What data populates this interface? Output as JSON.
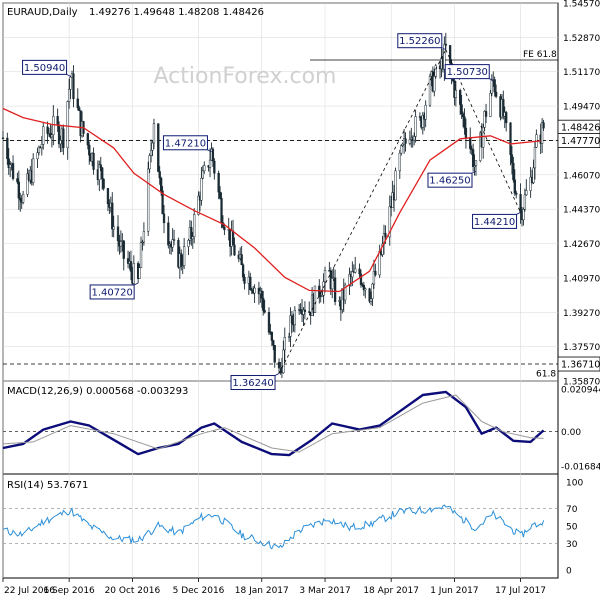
{
  "header": {
    "symbol": "EURAUD,Daily",
    "ohlc": "1.49276 1.49648 1.48208 1.48426"
  },
  "watermark": "ActionForex.com",
  "colors": {
    "candle": "#1a2a33",
    "ma": "#e02020",
    "macd_line": "#0d0d7a",
    "signal_line": "#9a9a9a",
    "rsi_line": "#2a8fd8",
    "grid": "#d7d7d7",
    "axis": "#000000",
    "label_box": "#0d1a70",
    "current_price_box": "#000000"
  },
  "chart_data": [
    {
      "type": "candlestick",
      "panel": "price",
      "y_ticks": [
        "1.54570",
        "1.52870",
        "1.51170",
        "1.49470",
        "1.47770",
        "1.46070",
        "1.44370",
        "1.42670",
        "1.40970",
        "1.39270",
        "1.37570",
        "1.35870"
      ],
      "ylim": [
        1.3587,
        1.5457
      ],
      "current_price": "1.48426",
      "reference_level": "1.47770",
      "support_level": "1.36710",
      "fe_labels": {
        "top": "FE 61.8",
        "bottom": "61.8"
      },
      "pivot_labels": [
        {
          "text": "1.50940",
          "date": "2016-09-07",
          "price": 1.5094,
          "side": "above"
        },
        {
          "text": "1.40720",
          "date": "2016-10-24",
          "price": 1.4072,
          "side": "below"
        },
        {
          "text": "1.47210",
          "date": "2016-12-14",
          "price": 1.4721,
          "side": "above"
        },
        {
          "text": "1.36240",
          "date": "2017-01-30",
          "price": 1.3624,
          "side": "below"
        },
        {
          "text": "1.52260",
          "date": "2017-05-26",
          "price": 1.5226,
          "side": "above"
        },
        {
          "text": "1.46250",
          "date": "2017-06-16",
          "price": 1.4625,
          "side": "below"
        },
        {
          "text": "1.50730",
          "date": "2017-06-28",
          "price": 1.5073,
          "side": "above"
        },
        {
          "text": "1.44210",
          "date": "2017-07-17",
          "price": 1.4421,
          "side": "below"
        }
      ],
      "zigzag": [
        {
          "date": "2017-01-30",
          "price": 1.3624
        },
        {
          "date": "2017-05-26",
          "price": 1.5226
        },
        {
          "date": "2017-07-17",
          "price": 1.4421
        }
      ],
      "ma_path": [
        {
          "date": "2016-07-22",
          "price": 1.4935
        },
        {
          "date": "2016-08-05",
          "price": 1.489
        },
        {
          "date": "2016-08-26",
          "price": 1.4855
        },
        {
          "date": "2016-09-16",
          "price": 1.484
        },
        {
          "date": "2016-10-07",
          "price": 1.474
        },
        {
          "date": "2016-10-21",
          "price": 1.4615
        },
        {
          "date": "2016-11-11",
          "price": 1.451
        },
        {
          "date": "2016-12-02",
          "price": 1.443
        },
        {
          "date": "2016-12-23",
          "price": 1.436
        },
        {
          "date": "2017-01-13",
          "price": 1.4245
        },
        {
          "date": "2017-02-03",
          "price": 1.41
        },
        {
          "date": "2017-02-20",
          "price": 1.4035
        },
        {
          "date": "2017-03-13",
          "price": 1.403
        },
        {
          "date": "2017-04-03",
          "price": 1.413
        },
        {
          "date": "2017-04-24",
          "price": 1.442
        },
        {
          "date": "2017-05-15",
          "price": 1.468
        },
        {
          "date": "2017-06-05",
          "price": 1.4785
        },
        {
          "date": "2017-06-26",
          "price": 1.48
        },
        {
          "date": "2017-07-10",
          "price": 1.476
        },
        {
          "date": "2017-07-31",
          "price": 1.4775
        }
      ],
      "price_path": [
        {
          "date": "2016-07-22",
          "price": 1.479
        },
        {
          "date": "2016-07-29",
          "price": 1.462
        },
        {
          "date": "2016-08-05",
          "price": 1.449
        },
        {
          "date": "2016-08-12",
          "price": 1.464
        },
        {
          "date": "2016-08-19",
          "price": 1.479
        },
        {
          "date": "2016-08-26",
          "price": 1.484
        },
        {
          "date": "2016-09-02",
          "price": 1.48
        },
        {
          "date": "2016-09-07",
          "price": 1.5094
        },
        {
          "date": "2016-09-14",
          "price": 1.485
        },
        {
          "date": "2016-09-23",
          "price": 1.468
        },
        {
          "date": "2016-09-30",
          "price": 1.459
        },
        {
          "date": "2016-10-07",
          "price": 1.435
        },
        {
          "date": "2016-10-14",
          "price": 1.42
        },
        {
          "date": "2016-10-24",
          "price": 1.4072
        },
        {
          "date": "2016-10-28",
          "price": 1.436
        },
        {
          "date": "2016-11-04",
          "price": 1.489
        },
        {
          "date": "2016-11-09",
          "price": 1.448
        },
        {
          "date": "2016-11-16",
          "price": 1.425
        },
        {
          "date": "2016-11-23",
          "price": 1.418
        },
        {
          "date": "2016-11-30",
          "price": 1.431
        },
        {
          "date": "2016-12-07",
          "price": 1.456
        },
        {
          "date": "2016-12-14",
          "price": 1.4721
        },
        {
          "date": "2016-12-21",
          "price": 1.443
        },
        {
          "date": "2016-12-28",
          "price": 1.427
        },
        {
          "date": "2017-01-04",
          "price": 1.414
        },
        {
          "date": "2017-01-11",
          "price": 1.408
        },
        {
          "date": "2017-01-18",
          "price": 1.4
        },
        {
          "date": "2017-01-25",
          "price": 1.376
        },
        {
          "date": "2017-01-30",
          "price": 1.3624
        },
        {
          "date": "2017-02-06",
          "price": 1.384
        },
        {
          "date": "2017-02-13",
          "price": 1.399
        },
        {
          "date": "2017-02-20",
          "price": 1.394
        },
        {
          "date": "2017-02-27",
          "price": 1.404
        },
        {
          "date": "2017-03-06",
          "price": 1.411
        },
        {
          "date": "2017-03-13",
          "price": 1.395
        },
        {
          "date": "2017-03-20",
          "price": 1.409
        },
        {
          "date": "2017-03-27",
          "price": 1.412
        },
        {
          "date": "2017-04-03",
          "price": 1.402
        },
        {
          "date": "2017-04-10",
          "price": 1.418
        },
        {
          "date": "2017-04-17",
          "price": 1.442
        },
        {
          "date": "2017-04-24",
          "price": 1.468
        },
        {
          "date": "2017-05-01",
          "price": 1.483
        },
        {
          "date": "2017-05-08",
          "price": 1.486
        },
        {
          "date": "2017-05-15",
          "price": 1.505
        },
        {
          "date": "2017-05-22",
          "price": 1.513
        },
        {
          "date": "2017-05-26",
          "price": 1.5226
        },
        {
          "date": "2017-06-02",
          "price": 1.5
        },
        {
          "date": "2017-06-09",
          "price": 1.484
        },
        {
          "date": "2017-06-16",
          "price": 1.4625
        },
        {
          "date": "2017-06-22",
          "price": 1.489
        },
        {
          "date": "2017-06-28",
          "price": 1.5073
        },
        {
          "date": "2017-07-05",
          "price": 1.49
        },
        {
          "date": "2017-07-12",
          "price": 1.46
        },
        {
          "date": "2017-07-17",
          "price": 1.4421
        },
        {
          "date": "2017-07-24",
          "price": 1.458
        },
        {
          "date": "2017-07-28",
          "price": 1.476
        },
        {
          "date": "2017-08-02",
          "price": 1.4843
        }
      ]
    },
    {
      "type": "line",
      "panel": "macd",
      "title": "MACD(12,26,9) 0.000568 -0.003293",
      "y_ticks": [
        "0.020944",
        "0.00",
        "-0.016849"
      ],
      "ylim": [
        -0.016849,
        0.020944
      ],
      "series": [
        {
          "name": "MACD",
          "points": [
            {
              "date": "2016-07-22",
              "value": -0.008
            },
            {
              "date": "2016-08-05",
              "value": -0.006
            },
            {
              "date": "2016-08-19",
              "value": 0.001
            },
            {
              "date": "2016-09-07",
              "value": 0.005
            },
            {
              "date": "2016-09-20",
              "value": 0.003
            },
            {
              "date": "2016-10-07",
              "value": -0.004
            },
            {
              "date": "2016-10-24",
              "value": -0.011
            },
            {
              "date": "2016-11-07",
              "value": -0.008
            },
            {
              "date": "2016-11-21",
              "value": -0.006
            },
            {
              "date": "2016-12-07",
              "value": 0.002
            },
            {
              "date": "2016-12-16",
              "value": 0.004
            },
            {
              "date": "2017-01-04",
              "value": -0.005
            },
            {
              "date": "2017-01-25",
              "value": -0.011
            },
            {
              "date": "2017-02-06",
              "value": -0.0115
            },
            {
              "date": "2017-02-22",
              "value": -0.004
            },
            {
              "date": "2017-03-08",
              "value": 0.004
            },
            {
              "date": "2017-03-27",
              "value": 0.001
            },
            {
              "date": "2017-04-10",
              "value": 0.003
            },
            {
              "date": "2017-04-24",
              "value": 0.01
            },
            {
              "date": "2017-05-10",
              "value": 0.018
            },
            {
              "date": "2017-05-26",
              "value": 0.0195
            },
            {
              "date": "2017-06-09",
              "value": 0.012
            },
            {
              "date": "2017-06-20",
              "value": -0.001
            },
            {
              "date": "2017-06-30",
              "value": 0.002
            },
            {
              "date": "2017-07-12",
              "value": -0.0045
            },
            {
              "date": "2017-07-24",
              "value": -0.005
            },
            {
              "date": "2017-08-02",
              "value": 0.0006
            }
          ]
        },
        {
          "name": "Signal",
          "points": [
            {
              "date": "2016-07-22",
              "value": -0.006
            },
            {
              "date": "2016-08-12",
              "value": -0.005
            },
            {
              "date": "2016-09-07",
              "value": 0.003
            },
            {
              "date": "2016-10-07",
              "value": -0.001
            },
            {
              "date": "2016-11-07",
              "value": -0.0085
            },
            {
              "date": "2016-12-07",
              "value": -0.001
            },
            {
              "date": "2016-12-23",
              "value": 0.002
            },
            {
              "date": "2017-01-25",
              "value": -0.008
            },
            {
              "date": "2017-02-13",
              "value": -0.01
            },
            {
              "date": "2017-03-08",
              "value": -0.001
            },
            {
              "date": "2017-04-10",
              "value": 0.002
            },
            {
              "date": "2017-05-10",
              "value": 0.014
            },
            {
              "date": "2017-06-02",
              "value": 0.018
            },
            {
              "date": "2017-06-20",
              "value": 0.005
            },
            {
              "date": "2017-07-05",
              "value": 0.0
            },
            {
              "date": "2017-07-24",
              "value": -0.003
            },
            {
              "date": "2017-08-02",
              "value": -0.0033
            }
          ]
        }
      ]
    },
    {
      "type": "line",
      "panel": "rsi",
      "title": "RSI(14) 53.7671",
      "y_ticks": [
        "100",
        "70",
        "50",
        "30",
        "0"
      ],
      "ylim": [
        0,
        100
      ],
      "series": [
        {
          "name": "RSI",
          "points": [
            {
              "date": "2016-07-22",
              "value": 45
            },
            {
              "date": "2016-08-05",
              "value": 40
            },
            {
              "date": "2016-08-19",
              "value": 55
            },
            {
              "date": "2016-09-07",
              "value": 68
            },
            {
              "date": "2016-09-20",
              "value": 50
            },
            {
              "date": "2016-10-07",
              "value": 36
            },
            {
              "date": "2016-10-24",
              "value": 34
            },
            {
              "date": "2016-11-07",
              "value": 50
            },
            {
              "date": "2016-11-21",
              "value": 42
            },
            {
              "date": "2016-12-07",
              "value": 60
            },
            {
              "date": "2016-12-16",
              "value": 63
            },
            {
              "date": "2017-01-04",
              "value": 40
            },
            {
              "date": "2017-01-25",
              "value": 28
            },
            {
              "date": "2017-01-30",
              "value": 24
            },
            {
              "date": "2017-02-13",
              "value": 45
            },
            {
              "date": "2017-03-06",
              "value": 58
            },
            {
              "date": "2017-03-20",
              "value": 48
            },
            {
              "date": "2017-04-03",
              "value": 52
            },
            {
              "date": "2017-04-24",
              "value": 66
            },
            {
              "date": "2017-05-10",
              "value": 68
            },
            {
              "date": "2017-05-26",
              "value": 72
            },
            {
              "date": "2017-06-09",
              "value": 55
            },
            {
              "date": "2017-06-16",
              "value": 48
            },
            {
              "date": "2017-06-28",
              "value": 63
            },
            {
              "date": "2017-07-12",
              "value": 45
            },
            {
              "date": "2017-07-17",
              "value": 38
            },
            {
              "date": "2017-07-24",
              "value": 50
            },
            {
              "date": "2017-08-02",
              "value": 54
            }
          ]
        }
      ]
    }
  ],
  "x_axis": {
    "labels": [
      "22 Jul 2016",
      "6 Sep 2016",
      "20 Oct 2016",
      "5 Dec 2016",
      "18 Jan 2017",
      "3 Mar 2017",
      "18 Apr 2017",
      "1 Jun 2017",
      "17 Jul 2017"
    ],
    "label_dates": [
      "2016-07-22",
      "2016-09-06",
      "2016-10-20",
      "2016-12-05",
      "2017-01-18",
      "2017-03-03",
      "2017-04-18",
      "2017-06-01",
      "2017-07-17"
    ],
    "start_date": "2016-07-22",
    "end_date": "2017-08-03"
  }
}
